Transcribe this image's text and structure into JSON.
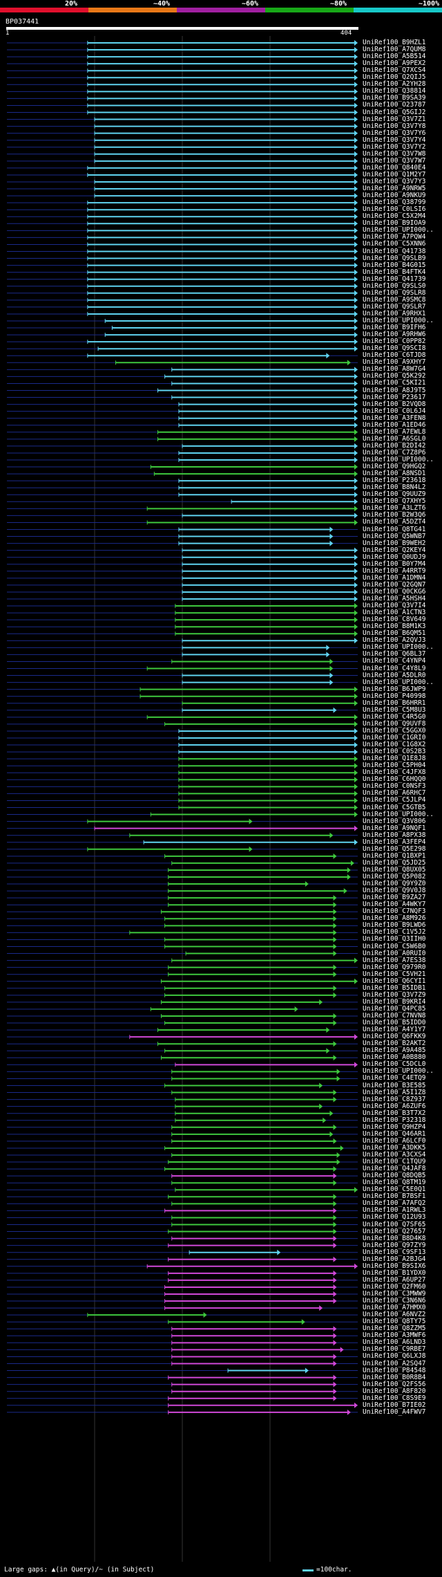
{
  "scale": {
    "labels": [
      "20%",
      "~40%",
      "~60%",
      "~80%",
      "~100%"
    ],
    "colors": [
      "#e0102d",
      "#e87818",
      "#a020a0",
      "#18a818",
      "#18c8c8"
    ]
  },
  "query": {
    "id": "BP037441",
    "start": "1",
    "end": "404"
  },
  "colors": {
    "cyan": "#5fd3f0",
    "green": "#3ec83e",
    "magenta": "#d048d8",
    "blue": "#1a2a8a"
  },
  "hits": [
    {
      "id": "UniRef100_B9HZL1",
      "s": 0.23,
      "e": 1.0,
      "c": "cyan"
    },
    {
      "id": "UniRef100_A7QUM8",
      "s": 0.23,
      "e": 1.0,
      "c": "cyan"
    },
    {
      "id": "UniRef100_A5B514",
      "s": 0.23,
      "e": 1.0,
      "c": "cyan"
    },
    {
      "id": "UniRef100_A9PEX2",
      "s": 0.23,
      "e": 1.0,
      "c": "cyan"
    },
    {
      "id": "UniRef100_Q7XCS4",
      "s": 0.23,
      "e": 1.0,
      "c": "cyan"
    },
    {
      "id": "UniRef100_Q2QIJ5",
      "s": 0.23,
      "e": 1.0,
      "c": "cyan"
    },
    {
      "id": "UniRef100_A2YH28",
      "s": 0.23,
      "e": 1.0,
      "c": "cyan"
    },
    {
      "id": "UniRef100_Q38814",
      "s": 0.23,
      "e": 1.0,
      "c": "cyan"
    },
    {
      "id": "UniRef100_B9SA39",
      "s": 0.23,
      "e": 1.0,
      "c": "cyan"
    },
    {
      "id": "UniRef100_O23787",
      "s": 0.23,
      "e": 1.0,
      "c": "cyan"
    },
    {
      "id": "UniRef100_Q5GIJ2",
      "s": 0.23,
      "e": 1.0,
      "c": "cyan"
    },
    {
      "id": "UniRef100_Q3V7Z1",
      "s": 0.25,
      "e": 1.0,
      "c": "cyan"
    },
    {
      "id": "UniRef100_Q3V7Y8",
      "s": 0.25,
      "e": 1.0,
      "c": "cyan"
    },
    {
      "id": "UniRef100_Q3V7Y6",
      "s": 0.25,
      "e": 1.0,
      "c": "cyan"
    },
    {
      "id": "UniRef100_Q3V7Y4",
      "s": 0.25,
      "e": 1.0,
      "c": "cyan"
    },
    {
      "id": "UniRef100_Q3V7Y2",
      "s": 0.25,
      "e": 1.0,
      "c": "cyan"
    },
    {
      "id": "UniRef100_Q3V7W8",
      "s": 0.25,
      "e": 1.0,
      "c": "cyan"
    },
    {
      "id": "UniRef100_Q3V7W7",
      "s": 0.25,
      "e": 1.0,
      "c": "cyan"
    },
    {
      "id": "UniRef100_Q840E4",
      "s": 0.23,
      "e": 1.0,
      "c": "cyan"
    },
    {
      "id": "UniRef100_Q1M2Y7",
      "s": 0.23,
      "e": 1.0,
      "c": "cyan"
    },
    {
      "id": "UniRef100_Q3V7Y3",
      "s": 0.25,
      "e": 1.0,
      "c": "cyan"
    },
    {
      "id": "UniRef100_A9NRW5",
      "s": 0.25,
      "e": 1.0,
      "c": "cyan"
    },
    {
      "id": "UniRef100_A9NKU9",
      "s": 0.25,
      "e": 1.0,
      "c": "cyan"
    },
    {
      "id": "UniRef100_Q38799",
      "s": 0.23,
      "e": 1.0,
      "c": "cyan"
    },
    {
      "id": "UniRef100_C0LSI6",
      "s": 0.23,
      "e": 1.0,
      "c": "cyan"
    },
    {
      "id": "UniRef100_C5X2M4",
      "s": 0.23,
      "e": 1.0,
      "c": "cyan"
    },
    {
      "id": "UniRef100_B9IOA9",
      "s": 0.23,
      "e": 1.0,
      "c": "cyan"
    },
    {
      "id": "UniRef100_UPI000..",
      "s": 0.23,
      "e": 1.0,
      "c": "cyan"
    },
    {
      "id": "UniRef100_A7PQW4",
      "s": 0.23,
      "e": 1.0,
      "c": "cyan"
    },
    {
      "id": "UniRef100_C5XNN6",
      "s": 0.23,
      "e": 1.0,
      "c": "cyan"
    },
    {
      "id": "UniRef100_Q41738",
      "s": 0.23,
      "e": 1.0,
      "c": "cyan"
    },
    {
      "id": "UniRef100_Q9SLB9",
      "s": 0.23,
      "e": 1.0,
      "c": "cyan"
    },
    {
      "id": "UniRef100_B4G015",
      "s": 0.23,
      "e": 1.0,
      "c": "cyan"
    },
    {
      "id": "UniRef100_B4FTK4",
      "s": 0.23,
      "e": 1.0,
      "c": "cyan"
    },
    {
      "id": "UniRef100_Q41739",
      "s": 0.23,
      "e": 1.0,
      "c": "cyan"
    },
    {
      "id": "UniRef100_Q9SLS0",
      "s": 0.23,
      "e": 1.0,
      "c": "cyan"
    },
    {
      "id": "UniRef100_Q9SLR8",
      "s": 0.23,
      "e": 1.0,
      "c": "cyan"
    },
    {
      "id": "UniRef100_A9SMC8",
      "s": 0.23,
      "e": 1.0,
      "c": "cyan"
    },
    {
      "id": "UniRef100_Q9SLR7",
      "s": 0.23,
      "e": 1.0,
      "c": "cyan"
    },
    {
      "id": "UniRef100_A9RHX1",
      "s": 0.23,
      "e": 1.0,
      "c": "cyan"
    },
    {
      "id": "UniRef100_UPI000..",
      "s": 0.28,
      "e": 1.0,
      "c": "cyan"
    },
    {
      "id": "UniRef100_B9IFH6",
      "s": 0.3,
      "e": 1.0,
      "c": "cyan"
    },
    {
      "id": "UniRef100_A9RHW6",
      "s": 0.28,
      "e": 1.0,
      "c": "cyan"
    },
    {
      "id": "UniRef100_C0PP82",
      "s": 0.23,
      "e": 1.0,
      "c": "cyan"
    },
    {
      "id": "UniRef100_Q9SCI8",
      "s": 0.26,
      "e": 1.0,
      "c": "cyan"
    },
    {
      "id": "UniRef100_C6TJD8",
      "s": 0.23,
      "e": 0.92,
      "c": "cyan"
    },
    {
      "id": "UniRef100_A9XHY7",
      "s": 0.31,
      "e": 0.98,
      "c": "green"
    },
    {
      "id": "UniRef100_A8W7G4",
      "s": 0.47,
      "e": 1.0,
      "c": "cyan"
    },
    {
      "id": "UniRef100_Q5K292",
      "s": 0.45,
      "e": 1.0,
      "c": "cyan"
    },
    {
      "id": "UniRef100_C5KI21",
      "s": 0.47,
      "e": 1.0,
      "c": "cyan"
    },
    {
      "id": "UniRef100_A8J9T5",
      "s": 0.43,
      "e": 1.0,
      "c": "cyan"
    },
    {
      "id": "UniRef100_P23617",
      "s": 0.47,
      "e": 1.0,
      "c": "cyan"
    },
    {
      "id": "UniRef100_B2VQD8",
      "s": 0.49,
      "e": 1.0,
      "c": "cyan"
    },
    {
      "id": "UniRef100_C0L6J4",
      "s": 0.49,
      "e": 1.0,
      "c": "cyan"
    },
    {
      "id": "UniRef100_A3FEN8",
      "s": 0.49,
      "e": 1.0,
      "c": "cyan"
    },
    {
      "id": "UniRef100_A1ED46",
      "s": 0.49,
      "e": 1.0,
      "c": "cyan"
    },
    {
      "id": "UniRef100_A7EWL8",
      "s": 0.43,
      "e": 1.0,
      "c": "green"
    },
    {
      "id": "UniRef100_A6SGL0",
      "s": 0.43,
      "e": 1.0,
      "c": "green"
    },
    {
      "id": "UniRef100_B2DI42",
      "s": 0.5,
      "e": 1.0,
      "c": "cyan"
    },
    {
      "id": "UniRef100_C7Z8P6",
      "s": 0.49,
      "e": 1.0,
      "c": "cyan"
    },
    {
      "id": "UniRef100_UPI000..",
      "s": 0.49,
      "e": 1.0,
      "c": "cyan"
    },
    {
      "id": "UniRef100_Q9HGQ2",
      "s": 0.41,
      "e": 1.0,
      "c": "green"
    },
    {
      "id": "UniRef100_A8NSD1",
      "s": 0.42,
      "e": 1.0,
      "c": "green"
    },
    {
      "id": "UniRef100_P23618",
      "s": 0.49,
      "e": 1.0,
      "c": "cyan"
    },
    {
      "id": "UniRef100_B8N4L2",
      "s": 0.49,
      "e": 1.0,
      "c": "cyan"
    },
    {
      "id": "UniRef100_Q9UUZ9",
      "s": 0.49,
      "e": 1.0,
      "c": "cyan"
    },
    {
      "id": "UniRef100_Q7XHY5",
      "s": 0.64,
      "e": 1.0,
      "c": "cyan"
    },
    {
      "id": "UniRef100_A3LZT6",
      "s": 0.4,
      "e": 1.0,
      "c": "green"
    },
    {
      "id": "UniRef100_B2W3Q6",
      "s": 0.5,
      "e": 1.0,
      "c": "cyan"
    },
    {
      "id": "UniRef100_A5DZT4",
      "s": 0.4,
      "e": 1.0,
      "c": "green"
    },
    {
      "id": "UniRef100_Q8TG41",
      "s": 0.49,
      "e": 0.93,
      "c": "cyan"
    },
    {
      "id": "UniRef100_Q5WNB7",
      "s": 0.49,
      "e": 0.93,
      "c": "cyan"
    },
    {
      "id": "UniRef100_B9WEH2",
      "s": 0.49,
      "e": 0.93,
      "c": "cyan"
    },
    {
      "id": "UniRef100_Q2KEY4",
      "s": 0.5,
      "e": 1.0,
      "c": "cyan"
    },
    {
      "id": "UniRef100_Q0UDJ9",
      "s": 0.5,
      "e": 1.0,
      "c": "cyan"
    },
    {
      "id": "UniRef100_B0Y7M4",
      "s": 0.5,
      "e": 1.0,
      "c": "cyan"
    },
    {
      "id": "UniRef100_A4RRT9",
      "s": 0.5,
      "e": 1.0,
      "c": "cyan"
    },
    {
      "id": "UniRef100_A1DMN4",
      "s": 0.5,
      "e": 1.0,
      "c": "cyan"
    },
    {
      "id": "UniRef100_Q2GQN7",
      "s": 0.5,
      "e": 1.0,
      "c": "cyan"
    },
    {
      "id": "UniRef100_Q0CKG6",
      "s": 0.5,
      "e": 1.0,
      "c": "cyan"
    },
    {
      "id": "UniRef100_A5HSH4",
      "s": 0.5,
      "e": 1.0,
      "c": "cyan"
    },
    {
      "id": "UniRef100_Q3V7I4",
      "s": 0.48,
      "e": 1.0,
      "c": "green"
    },
    {
      "id": "UniRef100_A1CTN3",
      "s": 0.48,
      "e": 1.0,
      "c": "green"
    },
    {
      "id": "UniRef100_C8V649",
      "s": 0.48,
      "e": 1.0,
      "c": "green"
    },
    {
      "id": "UniRef100_B8M1K3",
      "s": 0.48,
      "e": 1.0,
      "c": "green"
    },
    {
      "id": "UniRef100_B6QM51",
      "s": 0.48,
      "e": 1.0,
      "c": "green"
    },
    {
      "id": "UniRef100_A2QVJ3",
      "s": 0.5,
      "e": 1.0,
      "c": "cyan"
    },
    {
      "id": "UniRef100_UPI000..",
      "s": 0.5,
      "e": 0.92,
      "c": "cyan"
    },
    {
      "id": "UniRef100_Q6BL37",
      "s": 0.5,
      "e": 0.92,
      "c": "cyan"
    },
    {
      "id": "UniRef100_C4YNP4",
      "s": 0.47,
      "e": 0.93,
      "c": "green"
    },
    {
      "id": "UniRef100_C4Y8L9",
      "s": 0.4,
      "e": 0.93,
      "c": "green"
    },
    {
      "id": "UniRef100_A5DLR0",
      "s": 0.5,
      "e": 0.93,
      "c": "cyan"
    },
    {
      "id": "UniRef100_UPI000..",
      "s": 0.5,
      "e": 0.93,
      "c": "cyan"
    },
    {
      "id": "UniRef100_B6JWP9",
      "s": 0.38,
      "e": 1.0,
      "c": "green"
    },
    {
      "id": "UniRef100_P40998",
      "s": 0.38,
      "e": 1.0,
      "c": "green"
    },
    {
      "id": "UniRef100_B6HRR1",
      "s": 0.5,
      "e": 1.0,
      "c": "green"
    },
    {
      "id": "UniRef100_C5M8U3",
      "s": 0.5,
      "e": 0.94,
      "c": "cyan"
    },
    {
      "id": "UniRef100_C4R5G0",
      "s": 0.4,
      "e": 1.0,
      "c": "green"
    },
    {
      "id": "UniRef100_Q9UVF8",
      "s": 0.45,
      "e": 1.0,
      "c": "green"
    },
    {
      "id": "UniRef100_C5GGX0",
      "s": 0.49,
      "e": 1.0,
      "c": "cyan"
    },
    {
      "id": "UniRef100_C1GRI0",
      "s": 0.49,
      "e": 1.0,
      "c": "cyan"
    },
    {
      "id": "UniRef100_C1G8X2",
      "s": 0.49,
      "e": 1.0,
      "c": "cyan"
    },
    {
      "id": "UniRef100_C0S2B3",
      "s": 0.49,
      "e": 1.0,
      "c": "cyan"
    },
    {
      "id": "UniRef100_Q1E8J8",
      "s": 0.49,
      "e": 1.0,
      "c": "green"
    },
    {
      "id": "UniRef100_C5PH04",
      "s": 0.49,
      "e": 1.0,
      "c": "green"
    },
    {
      "id": "UniRef100_C4JFX8",
      "s": 0.49,
      "e": 1.0,
      "c": "green"
    },
    {
      "id": "UniRef100_C6HQQ0",
      "s": 0.49,
      "e": 1.0,
      "c": "green"
    },
    {
      "id": "UniRef100_C0NSF3",
      "s": 0.49,
      "e": 1.0,
      "c": "green"
    },
    {
      "id": "UniRef100_A6RHC7",
      "s": 0.49,
      "e": 1.0,
      "c": "green"
    },
    {
      "id": "UniRef100_C5JLP4",
      "s": 0.49,
      "e": 1.0,
      "c": "green"
    },
    {
      "id": "UniRef100_C5GTB5",
      "s": 0.49,
      "e": 1.0,
      "c": "green"
    },
    {
      "id": "UniRef100_UPI000..",
      "s": 0.41,
      "e": 1.0,
      "c": "green"
    },
    {
      "id": "UniRef100_Q3V806",
      "s": 0.23,
      "e": 0.7,
      "c": "green"
    },
    {
      "id": "UniRef100_A9NQF1",
      "s": 0.25,
      "e": 1.0,
      "c": "magenta"
    },
    {
      "id": "UniRef100_A8PX38",
      "s": 0.35,
      "e": 0.93,
      "c": "green"
    },
    {
      "id": "UniRef100_A3FEP4",
      "s": 0.39,
      "e": 1.0,
      "c": "cyan"
    },
    {
      "id": "UniRef100_Q5E298",
      "s": 0.23,
      "e": 0.7,
      "c": "green"
    },
    {
      "id": "UniRef100_Q1BXP1",
      "s": 0.45,
      "e": 0.94,
      "c": "green"
    },
    {
      "id": "UniRef100_Q5JD25",
      "s": 0.47,
      "e": 0.99,
      "c": "green"
    },
    {
      "id": "UniRef100_Q8UX05",
      "s": 0.46,
      "e": 0.98,
      "c": "green"
    },
    {
      "id": "UniRef100_Q5P082",
      "s": 0.46,
      "e": 0.98,
      "c": "green"
    },
    {
      "id": "UniRef100_Q9Y9Z0",
      "s": 0.46,
      "e": 0.86,
      "c": "green"
    },
    {
      "id": "UniRef100_Q9V0J8",
      "s": 0.46,
      "e": 0.97,
      "c": "green"
    },
    {
      "id": "UniRef100_B9ZA27",
      "s": 0.46,
      "e": 0.94,
      "c": "green"
    },
    {
      "id": "UniRef100_A4WKY7",
      "s": 0.46,
      "e": 0.94,
      "c": "green"
    },
    {
      "id": "UniRef100_C7NQF3",
      "s": 0.44,
      "e": 0.94,
      "c": "green"
    },
    {
      "id": "UniRef100_A8M926",
      "s": 0.45,
      "e": 0.94,
      "c": "green"
    },
    {
      "id": "UniRef100_B9LWD6",
      "s": 0.45,
      "e": 0.94,
      "c": "green"
    },
    {
      "id": "UniRef100_C1V5J2",
      "s": 0.35,
      "e": 0.94,
      "c": "green"
    },
    {
      "id": "UniRef100_Q3IIH0",
      "s": 0.45,
      "e": 0.94,
      "c": "green"
    },
    {
      "id": "UniRef100_C5W6B0",
      "s": 0.45,
      "e": 0.94,
      "c": "green"
    },
    {
      "id": "UniRef100_A0RUI0",
      "s": 0.51,
      "e": 0.94,
      "c": "green"
    },
    {
      "id": "UniRef100_A7ES38",
      "s": 0.47,
      "e": 1.0,
      "c": "green"
    },
    {
      "id": "UniRef100_Q979R0",
      "s": 0.46,
      "e": 0.94,
      "c": "green"
    },
    {
      "id": "UniRef100_C5VH21",
      "s": 0.46,
      "e": 0.94,
      "c": "green"
    },
    {
      "id": "UniRef100_Q6CYI1",
      "s": 0.44,
      "e": 1.0,
      "c": "green"
    },
    {
      "id": "UniRef100_B5IDB1",
      "s": 0.45,
      "e": 0.94,
      "c": "green"
    },
    {
      "id": "UniRef100_Q3V7Z9",
      "s": 0.45,
      "e": 0.94,
      "c": "green"
    },
    {
      "id": "UniRef100_B9KRI4",
      "s": 0.44,
      "e": 0.9,
      "c": "green"
    },
    {
      "id": "UniRef100_Q4PC85",
      "s": 0.41,
      "e": 0.83,
      "c": "green"
    },
    {
      "id": "UniRef100_C7NVN8",
      "s": 0.44,
      "e": 0.94,
      "c": "green"
    },
    {
      "id": "UniRef100_B5IDD0",
      "s": 0.45,
      "e": 0.94,
      "c": "green"
    },
    {
      "id": "UniRef100_A4Y1Y7",
      "s": 0.43,
      "e": 0.92,
      "c": "green"
    },
    {
      "id": "UniRef100_Q6FKK9",
      "s": 0.35,
      "e": 1.0,
      "c": "magenta"
    },
    {
      "id": "UniRef100_B2AKT2",
      "s": 0.43,
      "e": 0.94,
      "c": "green"
    },
    {
      "id": "UniRef100_A9A485",
      "s": 0.45,
      "e": 0.92,
      "c": "green"
    },
    {
      "id": "UniRef100_A0B880",
      "s": 0.44,
      "e": 0.94,
      "c": "green"
    },
    {
      "id": "UniRef100_C5DCL0",
      "s": 0.48,
      "e": 1.0,
      "c": "magenta"
    },
    {
      "id": "UniRef100_UPI000..",
      "s": 0.47,
      "e": 0.95,
      "c": "green"
    },
    {
      "id": "UniRef100_C4ETQ9",
      "s": 0.47,
      "e": 0.95,
      "c": "green"
    },
    {
      "id": "UniRef100_B3E585",
      "s": 0.45,
      "e": 0.9,
      "c": "green"
    },
    {
      "id": "UniRef100_A5I1Z8",
      "s": 0.47,
      "e": 0.94,
      "c": "green"
    },
    {
      "id": "UniRef100_C8Z937",
      "s": 0.48,
      "e": 0.94,
      "c": "green"
    },
    {
      "id": "UniRef100_A6ZUF6",
      "s": 0.48,
      "e": 0.9,
      "c": "green"
    },
    {
      "id": "UniRef100_B3T7X2",
      "s": 0.48,
      "e": 0.93,
      "c": "green"
    },
    {
      "id": "UniRef100_P32318",
      "s": 0.48,
      "e": 0.91,
      "c": "green"
    },
    {
      "id": "UniRef100_Q9HZP4",
      "s": 0.47,
      "e": 0.94,
      "c": "green"
    },
    {
      "id": "UniRef100_Q46AR1",
      "s": 0.47,
      "e": 0.93,
      "c": "green"
    },
    {
      "id": "UniRef100_A6LCF0",
      "s": 0.47,
      "e": 0.94,
      "c": "green"
    },
    {
      "id": "UniRef100_A3DKK5",
      "s": 0.45,
      "e": 0.96,
      "c": "green"
    },
    {
      "id": "UniRef100_A3CXS4",
      "s": 0.47,
      "e": 0.95,
      "c": "green"
    },
    {
      "id": "UniRef100_C1TQU9",
      "s": 0.46,
      "e": 0.95,
      "c": "green"
    },
    {
      "id": "UniRef100_Q4JAF8",
      "s": 0.45,
      "e": 0.94,
      "c": "green"
    },
    {
      "id": "UniRef100_Q8DQB5",
      "s": 0.47,
      "e": 0.94,
      "c": "magenta"
    },
    {
      "id": "UniRef100_Q8TM19",
      "s": 0.47,
      "e": 0.94,
      "c": "green"
    },
    {
      "id": "UniRef100_C5E0Q1",
      "s": 0.48,
      "e": 1.0,
      "c": "green"
    },
    {
      "id": "UniRef100_B7BSF1",
      "s": 0.46,
      "e": 0.94,
      "c": "green"
    },
    {
      "id": "UniRef100_A7AFQ2",
      "s": 0.47,
      "e": 0.94,
      "c": "green"
    },
    {
      "id": "UniRef100_A1RWL3",
      "s": 0.45,
      "e": 0.94,
      "c": "magenta"
    },
    {
      "id": "UniRef100_Q12U93",
      "s": 0.47,
      "e": 0.94,
      "c": "green"
    },
    {
      "id": "UniRef100_Q7SF65",
      "s": 0.47,
      "e": 0.94,
      "c": "green"
    },
    {
      "id": "UniRef100_Q27657",
      "s": 0.46,
      "e": 0.94,
      "c": "green"
    },
    {
      "id": "UniRef100_B8D4K8",
      "s": 0.47,
      "e": 0.94,
      "c": "magenta"
    },
    {
      "id": "UniRef100_Q97ZY9",
      "s": 0.46,
      "e": 0.94,
      "c": "magenta"
    },
    {
      "id": "UniRef100_C9SF13",
      "s": 0.52,
      "e": 0.78,
      "c": "cyan"
    },
    {
      "id": "UniRef100_A2BJG4",
      "s": 0.46,
      "e": 0.94,
      "c": "magenta"
    },
    {
      "id": "UniRef100_B9SIX6",
      "s": 0.4,
      "e": 1.0,
      "c": "magenta"
    },
    {
      "id": "UniRef100_B1YDX0",
      "s": 0.46,
      "e": 0.94,
      "c": "magenta"
    },
    {
      "id": "UniRef100_A6UP27",
      "s": 0.46,
      "e": 0.94,
      "c": "magenta"
    },
    {
      "id": "UniRef100_Q2FM60",
      "s": 0.45,
      "e": 0.94,
      "c": "magenta"
    },
    {
      "id": "UniRef100_C3MWW9",
      "s": 0.45,
      "e": 0.94,
      "c": "magenta"
    },
    {
      "id": "UniRef100_C3N6N6",
      "s": 0.45,
      "e": 0.94,
      "c": "magenta"
    },
    {
      "id": "UniRef100_A7HMX0",
      "s": 0.45,
      "e": 0.9,
      "c": "magenta"
    },
    {
      "id": "UniRef100_A6NVZ2",
      "s": 0.23,
      "e": 0.57,
      "c": "green"
    },
    {
      "id": "UniRef100_Q8TY75",
      "s": 0.46,
      "e": 0.85,
      "c": "green"
    },
    {
      "id": "UniRef100_Q8ZZM5",
      "s": 0.47,
      "e": 0.94,
      "c": "magenta"
    },
    {
      "id": "UniRef100_A3MWF6",
      "s": 0.47,
      "e": 0.94,
      "c": "magenta"
    },
    {
      "id": "UniRef100_A6LND3",
      "s": 0.47,
      "e": 0.94,
      "c": "magenta"
    },
    {
      "id": "UniRef100_C9RBE7",
      "s": 0.47,
      "e": 0.96,
      "c": "magenta"
    },
    {
      "id": "UniRef100_Q6LXJ8",
      "s": 0.47,
      "e": 0.94,
      "c": "magenta"
    },
    {
      "id": "UniRef100_A2SQ47",
      "s": 0.47,
      "e": 0.94,
      "c": "magenta"
    },
    {
      "id": "UniRef100_P84548",
      "s": 0.63,
      "e": 0.86,
      "c": "cyan"
    },
    {
      "id": "UniRef100_B0R8B4",
      "s": 0.46,
      "e": 0.94,
      "c": "magenta"
    },
    {
      "id": "UniRef100_Q2FS56",
      "s": 0.47,
      "e": 0.94,
      "c": "magenta"
    },
    {
      "id": "UniRef100_A8F820",
      "s": 0.47,
      "e": 0.94,
      "c": "magenta"
    },
    {
      "id": "UniRef100_C8S9E9",
      "s": 0.46,
      "e": 0.94,
      "c": "magenta"
    },
    {
      "id": "UniRef100_B7IE02",
      "s": 0.46,
      "e": 1.0,
      "c": "magenta"
    },
    {
      "id": "UniRef100_A4FWV7",
      "s": 0.46,
      "e": 0.98,
      "c": "magenta"
    }
  ],
  "footer": {
    "legend": "Large gaps: ▲(in Query)/~ (in Subject)",
    "scale_note": "=100char."
  }
}
